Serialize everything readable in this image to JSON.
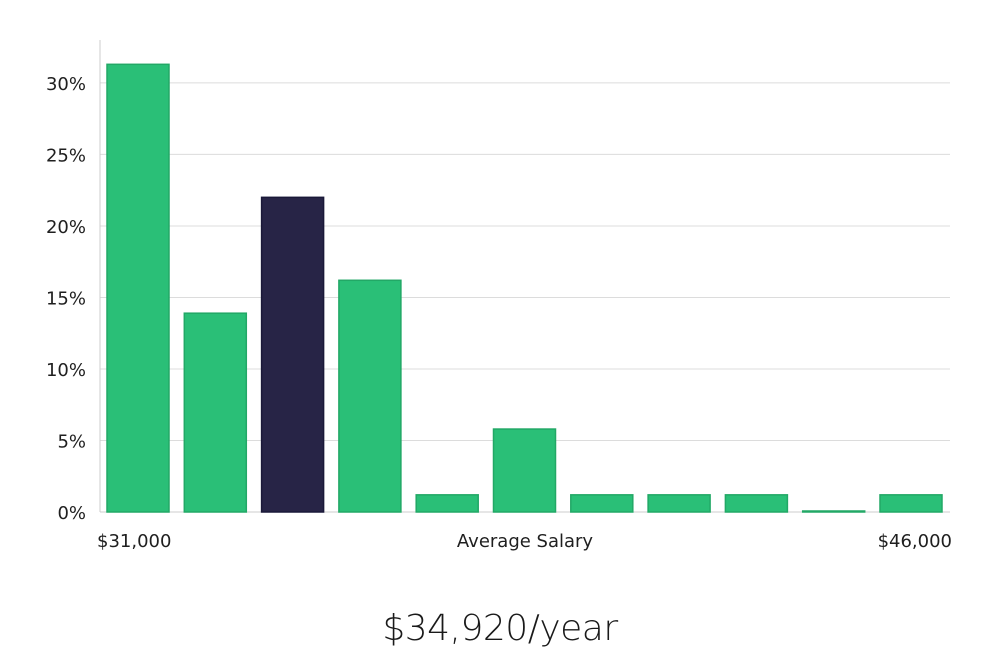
{
  "chart_data": {
    "type": "bar",
    "categories": [
      "1",
      "2",
      "3",
      "4",
      "5",
      "6",
      "7",
      "8",
      "9",
      "10",
      "11"
    ],
    "values": [
      31.3,
      13.9,
      22.0,
      16.2,
      1.2,
      5.8,
      1.2,
      1.2,
      1.2,
      0.0,
      1.2
    ],
    "highlight_index": 2,
    "ylim": [
      0,
      33
    ],
    "yticks": [
      "0%",
      "5%",
      "10%",
      "15%",
      "20%",
      "25%",
      "30%"
    ],
    "ytick_values": [
      0,
      5,
      10,
      15,
      20,
      25,
      30
    ],
    "x_min_label": "$31,000",
    "xlabel": "Average Salary",
    "x_max_label": "$46,000",
    "grid": true,
    "colors": {
      "bar": "#2abf77",
      "bar_stroke": "#22a866",
      "highlight": "#272446",
      "grid": "#dcdcdc",
      "axis": "#cccccc"
    }
  },
  "headline": "$34,920/year"
}
